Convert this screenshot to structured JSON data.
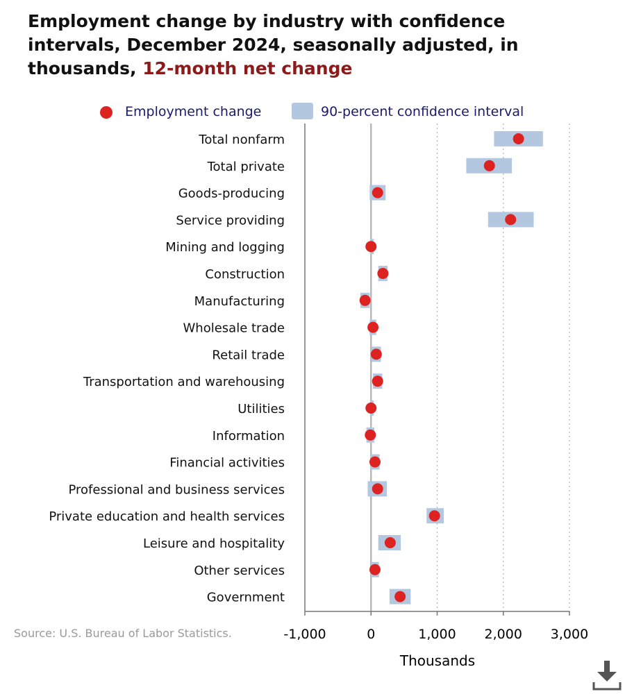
{
  "title": {
    "main": "Employment change by industry with confidence intervals, December 2024, seasonally adjusted, in thousands, ",
    "highlight": "12-month net change"
  },
  "legend": {
    "marker_label": "Employment change",
    "band_label": "90-percent confidence interval"
  },
  "source": "Source: U.S. Bureau of Labor Statistics.",
  "icons": {
    "download": "download-icon"
  },
  "colors": {
    "marker": "#dd2222",
    "band": "#b3c8e0",
    "title_highlight": "#8b1a1a",
    "legend_text": "#1a1a6e"
  },
  "chart_data": {
    "type": "scatter",
    "xlabel": "Thousands",
    "xlim": [
      -1000,
      3000
    ],
    "xticks": [
      -1000,
      0,
      1000,
      2000,
      3000
    ],
    "xtick_labels": [
      "-1,000",
      "0",
      "1,000",
      "2,000",
      "3,000"
    ],
    "grid": "vertical dotted at 1,000, 2,000, 3,000",
    "legend_position": "top",
    "categories": [
      "Total nonfarm",
      "Total private",
      "Goods-producing",
      "Service providing",
      "Mining and logging",
      "Construction",
      "Manufacturing",
      "Wholesale trade",
      "Retail trade",
      "Transportation and warehousing",
      "Utilities",
      "Information",
      "Financial activities",
      "Professional and business services",
      "Private education and health services",
      "Leisure and hospitality",
      "Other services",
      "Government"
    ],
    "series": [
      {
        "name": "Employment change",
        "values": [
          2230,
          1790,
          100,
          2110,
          0,
          180,
          -90,
          30,
          80,
          100,
          0,
          -10,
          60,
          100,
          960,
          290,
          60,
          440
        ]
      },
      {
        "name": "90-percent confidence interval",
        "lower": [
          1860,
          1440,
          -20,
          1770,
          -10,
          110,
          -160,
          -20,
          10,
          30,
          -10,
          -70,
          -10,
          -50,
          840,
          110,
          0,
          280
        ],
        "upper": [
          2600,
          2130,
          220,
          2460,
          10,
          250,
          -20,
          80,
          150,
          170,
          10,
          50,
          130,
          240,
          1100,
          450,
          120,
          600
        ]
      }
    ]
  }
}
